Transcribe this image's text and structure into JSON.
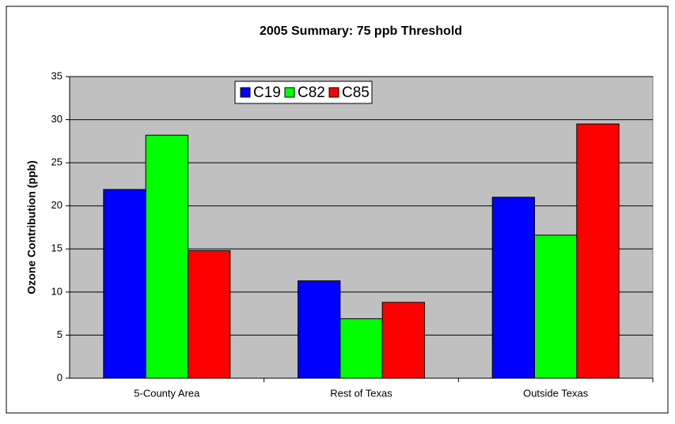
{
  "chart_data": {
    "type": "bar",
    "title": "2005 Summary: 75 ppb Threshold",
    "y_label": "Ozone Contribution (ppb)",
    "categories": [
      "5-County Area",
      "Rest of Texas",
      "Outside Texas"
    ],
    "series": [
      {
        "name": "C19",
        "color": "#0000ff",
        "values": [
          21.9,
          11.3,
          21.0
        ]
      },
      {
        "name": "C82",
        "color": "#00ff00",
        "values": [
          28.2,
          6.9,
          16.6
        ]
      },
      {
        "name": "C85",
        "color": "#ff0000",
        "values": [
          14.8,
          8.8,
          29.5
        ]
      }
    ],
    "ylim": [
      0,
      35
    ],
    "yticks": [
      0,
      5,
      10,
      15,
      20,
      25,
      30,
      35
    ],
    "grid": true,
    "legend": "top",
    "plot_background": "#c0c0c0"
  }
}
